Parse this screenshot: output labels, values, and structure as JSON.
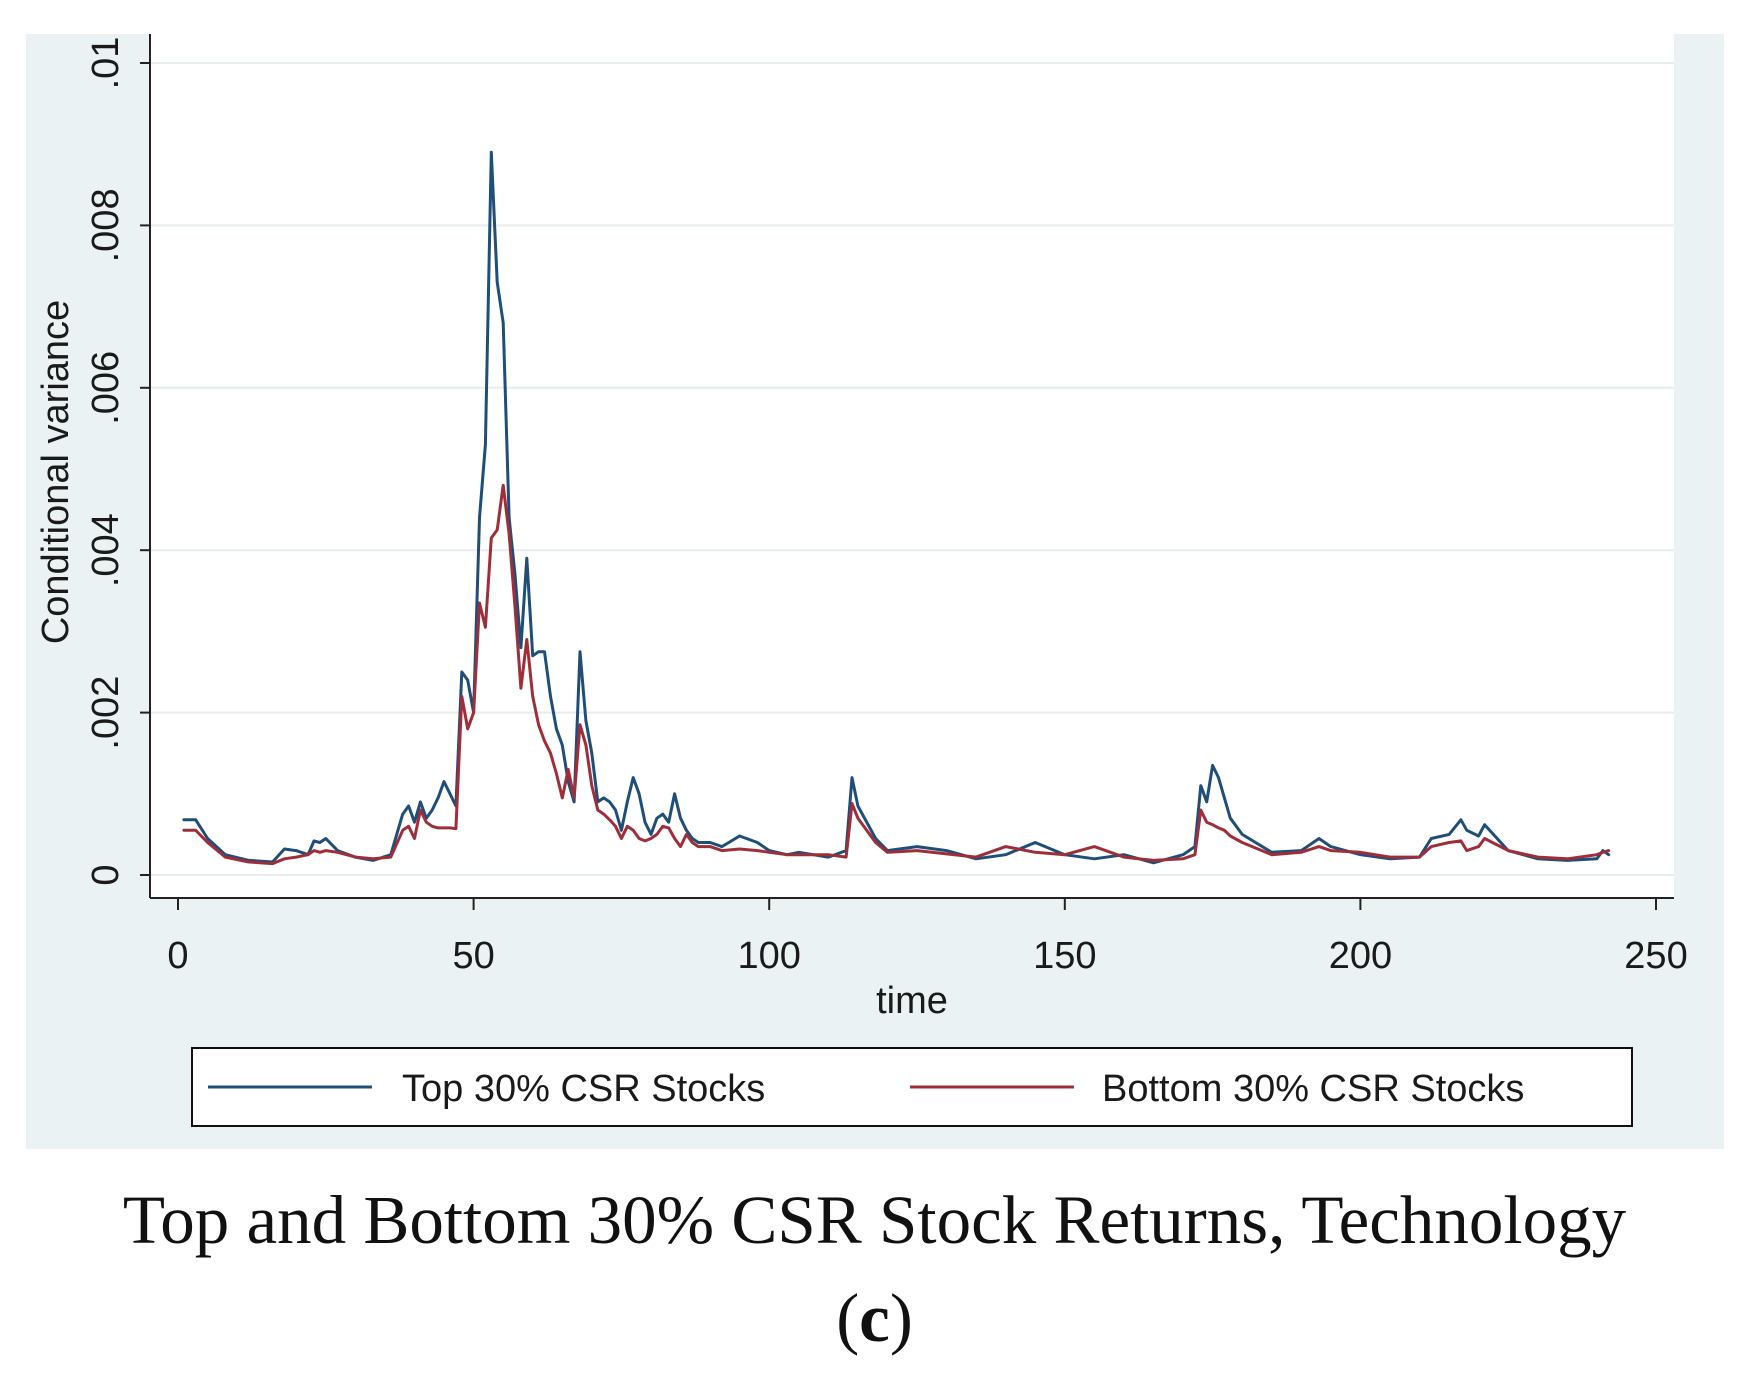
{
  "chart_data": {
    "type": "line",
    "title": "",
    "xlabel": "time",
    "ylabel": "Conditional variance",
    "xlim": [
      0,
      250
    ],
    "ylim": [
      0,
      0.01
    ],
    "xticks": [
      0,
      50,
      100,
      150,
      200,
      250
    ],
    "xtick_labels": [
      "0",
      "50",
      "100",
      "150",
      "200",
      "250"
    ],
    "yticks": [
      0,
      0.002,
      0.004,
      0.006,
      0.008,
      0.01
    ],
    "ytick_labels": [
      "0",
      ".002",
      ".004",
      ".006",
      ".008",
      ".01"
    ],
    "grid": true,
    "legend_position": "bottom",
    "series": [
      {
        "name": "Top 30% CSR Stocks",
        "color": "#1f4e79",
        "x": [
          1,
          3,
          5,
          8,
          12,
          16,
          18,
          20,
          22,
          23,
          24,
          25,
          27,
          30,
          33,
          36,
          38,
          39,
          40,
          41,
          42,
          43,
          44,
          45,
          46,
          47,
          48,
          49,
          50,
          51,
          52,
          53,
          54,
          55,
          56,
          57,
          58,
          59,
          60,
          61,
          62,
          63,
          64,
          65,
          66,
          67,
          68,
          69,
          70,
          71,
          72,
          73,
          74,
          75,
          76,
          77,
          78,
          79,
          80,
          81,
          82,
          83,
          84,
          85,
          86,
          87,
          88,
          90,
          92,
          95,
          98,
          100,
          103,
          105,
          110,
          113,
          114,
          115,
          118,
          120,
          125,
          130,
          135,
          140,
          145,
          150,
          155,
          160,
          165,
          170,
          172,
          173,
          174,
          175,
          176,
          177,
          178,
          180,
          185,
          190,
          193,
          195,
          200,
          205,
          210,
          212,
          215,
          217,
          218,
          220,
          221,
          225,
          230,
          235,
          240,
          241,
          242
        ],
        "values": [
          0.00068,
          0.00068,
          0.00045,
          0.00025,
          0.00018,
          0.00016,
          0.00032,
          0.0003,
          0.00025,
          0.00042,
          0.0004,
          0.00045,
          0.0003,
          0.00022,
          0.00018,
          0.00025,
          0.00075,
          0.00085,
          0.00065,
          0.0009,
          0.0007,
          0.0008,
          0.00095,
          0.00115,
          0.001,
          0.00085,
          0.0025,
          0.0024,
          0.002,
          0.0044,
          0.0053,
          0.0089,
          0.0073,
          0.0068,
          0.0044,
          0.0037,
          0.0028,
          0.0039,
          0.0027,
          0.00275,
          0.00275,
          0.0022,
          0.0018,
          0.0016,
          0.00115,
          0.0009,
          0.00275,
          0.0019,
          0.0015,
          0.0009,
          0.00095,
          0.0009,
          0.0008,
          0.00055,
          0.0009,
          0.0012,
          0.001,
          0.00065,
          0.0005,
          0.0007,
          0.00075,
          0.00065,
          0.001,
          0.0007,
          0.00055,
          0.00045,
          0.0004,
          0.0004,
          0.00035,
          0.00048,
          0.0004,
          0.0003,
          0.00025,
          0.00028,
          0.00022,
          0.0003,
          0.0012,
          0.00085,
          0.00045,
          0.0003,
          0.00035,
          0.0003,
          0.0002,
          0.00025,
          0.0004,
          0.00025,
          0.0002,
          0.00025,
          0.00015,
          0.00025,
          0.00035,
          0.0011,
          0.0009,
          0.00135,
          0.0012,
          0.00095,
          0.0007,
          0.0005,
          0.00028,
          0.0003,
          0.00045,
          0.00035,
          0.00025,
          0.0002,
          0.00022,
          0.00045,
          0.0005,
          0.00068,
          0.00055,
          0.00048,
          0.00062,
          0.0003,
          0.0002,
          0.00018,
          0.0002,
          0.0003,
          0.00025
        ]
      },
      {
        "name": "Bottom 30% CSR Stocks",
        "color": "#9e2f3a",
        "x": [
          1,
          3,
          5,
          8,
          12,
          16,
          18,
          20,
          22,
          23,
          24,
          25,
          27,
          30,
          33,
          36,
          38,
          39,
          40,
          41,
          42,
          43,
          44,
          45,
          46,
          47,
          48,
          49,
          50,
          51,
          52,
          53,
          54,
          55,
          56,
          57,
          58,
          59,
          60,
          61,
          62,
          63,
          64,
          65,
          66,
          67,
          68,
          69,
          70,
          71,
          72,
          73,
          74,
          75,
          76,
          77,
          78,
          79,
          80,
          81,
          82,
          83,
          84,
          85,
          86,
          87,
          88,
          90,
          92,
          95,
          98,
          100,
          103,
          105,
          110,
          113,
          114,
          115,
          118,
          120,
          125,
          130,
          135,
          140,
          145,
          150,
          155,
          160,
          165,
          170,
          172,
          173,
          174,
          175,
          176,
          177,
          178,
          180,
          185,
          190,
          193,
          195,
          200,
          205,
          210,
          212,
          215,
          217,
          218,
          220,
          221,
          225,
          230,
          235,
          240,
          241,
          242
        ],
        "values": [
          0.00055,
          0.00055,
          0.0004,
          0.00022,
          0.00016,
          0.00014,
          0.0002,
          0.00022,
          0.00025,
          0.0003,
          0.00028,
          0.0003,
          0.00028,
          0.00022,
          0.0002,
          0.00022,
          0.00055,
          0.0006,
          0.00045,
          0.0008,
          0.00065,
          0.0006,
          0.00058,
          0.00058,
          0.00058,
          0.00057,
          0.0022,
          0.0018,
          0.002,
          0.00335,
          0.00305,
          0.00415,
          0.00425,
          0.0048,
          0.0042,
          0.0033,
          0.0023,
          0.0029,
          0.0022,
          0.00185,
          0.00165,
          0.0015,
          0.00125,
          0.00095,
          0.0013,
          0.00095,
          0.00185,
          0.0016,
          0.0011,
          0.0008,
          0.00075,
          0.00068,
          0.0006,
          0.00045,
          0.0006,
          0.00055,
          0.00045,
          0.00042,
          0.00045,
          0.0005,
          0.0006,
          0.00058,
          0.00045,
          0.00035,
          0.0005,
          0.0004,
          0.00035,
          0.00035,
          0.0003,
          0.00032,
          0.0003,
          0.00028,
          0.00025,
          0.00025,
          0.00025,
          0.00022,
          0.00088,
          0.0007,
          0.0004,
          0.00028,
          0.0003,
          0.00026,
          0.00022,
          0.00035,
          0.00028,
          0.00025,
          0.00035,
          0.00022,
          0.00018,
          0.0002,
          0.00025,
          0.0008,
          0.00065,
          0.00062,
          0.00058,
          0.00055,
          0.00048,
          0.0004,
          0.00025,
          0.00028,
          0.00035,
          0.0003,
          0.00028,
          0.00022,
          0.00022,
          0.00035,
          0.0004,
          0.00042,
          0.0003,
          0.00035,
          0.00045,
          0.0003,
          0.00022,
          0.0002,
          0.00025,
          0.00028,
          0.0003
        ]
      }
    ]
  },
  "caption": {
    "title": "Top and Bottom 30% CSR Stock Returns, Technology",
    "label_open": "(",
    "label": "c",
    "label_close": ")"
  }
}
